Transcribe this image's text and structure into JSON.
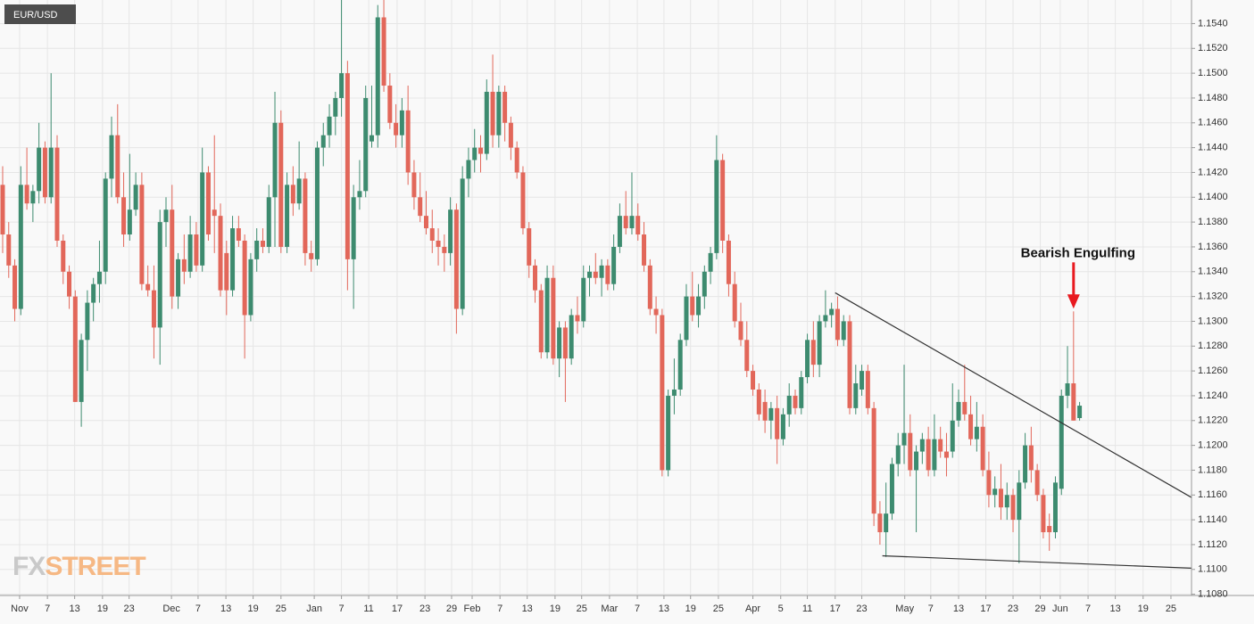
{
  "chart_data": {
    "type": "candlestick",
    "title": "EUR/USD",
    "watermark": [
      "FX",
      "STREET"
    ],
    "up_color": "#3d8b6f",
    "down_color": "#e2675a",
    "grid": true,
    "open": [
      1.141,
      1.137,
      1.1345,
      1.131,
      1.141,
      1.1395,
      1.1405,
      1.144,
      1.14,
      1.144,
      1.1365,
      1.134,
      1.132,
      1.1235,
      1.1285,
      1.1315,
      1.133,
      1.134,
      1.1415,
      1.145,
      1.14,
      1.137,
      1.139,
      1.141,
      1.133,
      1.1325,
      1.1295,
      1.138,
      1.139,
      1.132,
      1.135,
      1.134,
      1.137,
      1.1345,
      1.142,
      1.139,
      1.1385,
      1.1355,
      1.1325,
      1.1375,
      1.1365,
      1.1305,
      1.135,
      1.1365,
      1.136,
      1.14,
      1.146,
      1.136,
      1.141,
      1.1395,
      1.1415,
      1.1355,
      1.135,
      1.144,
      1.145,
      1.1465,
      1.148,
      1.15,
      1.135,
      1.14,
      1.1405,
      1.1445,
      1.145,
      1.1545,
      1.149,
      1.146,
      1.145,
      1.147,
      1.142,
      1.14,
      1.1385,
      1.1375,
      1.1365,
      1.136,
      1.1355,
      1.139,
      1.131,
      1.1415,
      1.143,
      1.144,
      1.1435,
      1.1485,
      1.145,
      1.1485,
      1.146,
      1.144,
      1.142,
      1.1375,
      1.1345,
      1.1325,
      1.1275,
      1.1335,
      1.127,
      1.1295,
      1.127,
      1.1305,
      1.13,
      1.1335,
      1.134,
      1.1335,
      1.1345,
      1.133,
      1.136,
      1.1385,
      1.1375,
      1.1385,
      1.137,
      1.1345,
      1.131,
      1.1305,
      1.118,
      1.124,
      1.1245,
      1.1285,
      1.132,
      1.1305,
      1.132,
      1.134,
      1.1355,
      1.143,
      1.1365,
      1.133,
      1.13,
      1.1285,
      1.126,
      1.1245,
      1.1235,
      1.122,
      1.123,
      1.1205,
      1.1225,
      1.124,
      1.123,
      1.1255,
      1.1285,
      1.1265,
      1.13,
      1.1305,
      1.131,
      1.1285,
      1.13,
      1.123,
      1.1245,
      1.126,
      1.123,
      1.1145,
      1.113,
      1.1145,
      1.1185,
      1.12,
      1.121,
      1.118,
      1.1195,
      1.1205,
      1.118,
      1.1205,
      1.1195,
      1.1195,
      1.122,
      1.1235,
      1.1225,
      1.1205,
      1.1215,
      1.118,
      1.116,
      1.1165,
      1.115,
      1.116,
      1.114,
      1.117,
      1.12,
      1.118,
      1.116,
      1.1135,
      1.113,
      1.1165,
      1.124,
      1.125,
      1.1222
    ],
    "high": [
      1.1425,
      1.138,
      1.135,
      1.1425,
      1.144,
      1.141,
      1.146,
      1.1445,
      1.15,
      1.145,
      1.137,
      1.1345,
      1.1325,
      1.129,
      1.1325,
      1.1335,
      1.1365,
      1.142,
      1.1465,
      1.1475,
      1.142,
      1.1435,
      1.142,
      1.142,
      1.1345,
      1.1345,
      1.139,
      1.14,
      1.141,
      1.1355,
      1.137,
      1.1385,
      1.138,
      1.144,
      1.1425,
      1.145,
      1.1395,
      1.1365,
      1.1385,
      1.1385,
      1.137,
      1.1355,
      1.1375,
      1.1375,
      1.141,
      1.1485,
      1.147,
      1.142,
      1.1425,
      1.1445,
      1.142,
      1.1365,
      1.1445,
      1.146,
      1.1475,
      1.1485,
      1.156,
      1.151,
      1.141,
      1.143,
      1.149,
      1.149,
      1.1555,
      1.156,
      1.15,
      1.1475,
      1.148,
      1.149,
      1.143,
      1.142,
      1.1405,
      1.139,
      1.1375,
      1.137,
      1.14,
      1.1395,
      1.1425,
      1.144,
      1.1455,
      1.145,
      1.1495,
      1.1515,
      1.149,
      1.149,
      1.1465,
      1.1445,
      1.1425,
      1.138,
      1.135,
      1.133,
      1.1345,
      1.1345,
      1.13,
      1.13,
      1.131,
      1.132,
      1.1345,
      1.1345,
      1.1355,
      1.135,
      1.135,
      1.137,
      1.1395,
      1.1405,
      1.142,
      1.1395,
      1.138,
      1.135,
      1.132,
      1.131,
      1.1245,
      1.127,
      1.129,
      1.133,
      1.134,
      1.133,
      1.1345,
      1.136,
      1.145,
      1.1435,
      1.137,
      1.134,
      1.1315,
      1.13,
      1.1265,
      1.125,
      1.1245,
      1.1235,
      1.124,
      1.123,
      1.125,
      1.1245,
      1.126,
      1.129,
      1.13,
      1.1305,
      1.1325,
      1.1315,
      1.132,
      1.1305,
      1.1305,
      1.1265,
      1.1265,
      1.1265,
      1.1235,
      1.1155,
      1.117,
      1.119,
      1.121,
      1.1265,
      1.1225,
      1.12,
      1.121,
      1.1215,
      1.1225,
      1.1215,
      1.121,
      1.125,
      1.1245,
      1.1265,
      1.124,
      1.1235,
      1.1225,
      1.1195,
      1.1175,
      1.1185,
      1.117,
      1.1165,
      1.118,
      1.121,
      1.1215,
      1.1185,
      1.1165,
      1.1145,
      1.1175,
      1.1245,
      1.128,
      1.1308,
      1.1235
    ],
    "low": [
      1.1355,
      1.1335,
      1.13,
      1.1305,
      1.139,
      1.138,
      1.1395,
      1.1395,
      1.1395,
      1.136,
      1.133,
      1.131,
      1.1235,
      1.1215,
      1.126,
      1.13,
      1.1315,
      1.133,
      1.14,
      1.1395,
      1.136,
      1.1365,
      1.1385,
      1.1325,
      1.132,
      1.127,
      1.1265,
      1.136,
      1.131,
      1.131,
      1.133,
      1.1335,
      1.134,
      1.134,
      1.1365,
      1.1355,
      1.132,
      1.1305,
      1.132,
      1.136,
      1.127,
      1.13,
      1.134,
      1.1355,
      1.1355,
      1.136,
      1.1355,
      1.1355,
      1.1385,
      1.139,
      1.1345,
      1.134,
      1.1345,
      1.1425,
      1.144,
      1.145,
      1.1465,
      1.1325,
      1.131,
      1.139,
      1.14,
      1.144,
      1.144,
      1.1485,
      1.1455,
      1.144,
      1.144,
      1.141,
      1.139,
      1.138,
      1.137,
      1.1355,
      1.1345,
      1.134,
      1.1345,
      1.129,
      1.1305,
      1.14,
      1.142,
      1.142,
      1.143,
      1.144,
      1.144,
      1.1445,
      1.143,
      1.1415,
      1.137,
      1.1335,
      1.1315,
      1.127,
      1.127,
      1.1265,
      1.1255,
      1.1235,
      1.1265,
      1.129,
      1.1295,
      1.132,
      1.133,
      1.132,
      1.1325,
      1.1325,
      1.1355,
      1.137,
      1.137,
      1.1365,
      1.134,
      1.1305,
      1.129,
      1.1175,
      1.1175,
      1.1225,
      1.124,
      1.128,
      1.13,
      1.1295,
      1.131,
      1.133,
      1.135,
      1.1355,
      1.132,
      1.1295,
      1.128,
      1.1255,
      1.124,
      1.122,
      1.121,
      1.1205,
      1.1185,
      1.12,
      1.1215,
      1.1225,
      1.1225,
      1.125,
      1.1255,
      1.1255,
      1.1295,
      1.1295,
      1.128,
      1.128,
      1.1225,
      1.1225,
      1.124,
      1.1225,
      1.1135,
      1.112,
      1.111,
      1.114,
      1.1175,
      1.1185,
      1.1175,
      1.113,
      1.1185,
      1.1175,
      1.1175,
      1.119,
      1.1175,
      1.119,
      1.1215,
      1.122,
      1.12,
      1.1195,
      1.1175,
      1.115,
      1.115,
      1.114,
      1.114,
      1.113,
      1.1105,
      1.1165,
      1.117,
      1.1155,
      1.1125,
      1.1115,
      1.1125,
      1.116,
      1.123,
      1.122,
      1.122
    ],
    "close": [
      1.137,
      1.1345,
      1.131,
      1.141,
      1.1395,
      1.1405,
      1.144,
      1.14,
      1.144,
      1.1365,
      1.134,
      1.132,
      1.1235,
      1.1285,
      1.1315,
      1.133,
      1.134,
      1.1415,
      1.145,
      1.14,
      1.137,
      1.139,
      1.141,
      1.133,
      1.1325,
      1.1295,
      1.138,
      1.139,
      1.132,
      1.135,
      1.134,
      1.137,
      1.1345,
      1.142,
      1.137,
      1.1385,
      1.1325,
      1.1325,
      1.1375,
      1.1365,
      1.1305,
      1.135,
      1.1365,
      1.136,
      1.14,
      1.146,
      1.136,
      1.141,
      1.1395,
      1.1415,
      1.1355,
      1.135,
      1.144,
      1.145,
      1.1465,
      1.148,
      1.15,
      1.135,
      1.14,
      1.1405,
      1.148,
      1.145,
      1.1545,
      1.149,
      1.146,
      1.145,
      1.147,
      1.142,
      1.14,
      1.1385,
      1.1375,
      1.1365,
      1.136,
      1.1355,
      1.139,
      1.131,
      1.1415,
      1.143,
      1.144,
      1.1435,
      1.1485,
      1.145,
      1.1485,
      1.146,
      1.144,
      1.142,
      1.1375,
      1.1345,
      1.1325,
      1.1275,
      1.1335,
      1.127,
      1.1295,
      1.127,
      1.1305,
      1.13,
      1.1335,
      1.134,
      1.1335,
      1.1345,
      1.133,
      1.136,
      1.1385,
      1.1375,
      1.1385,
      1.137,
      1.1345,
      1.131,
      1.1305,
      1.118,
      1.124,
      1.1245,
      1.1285,
      1.132,
      1.1305,
      1.132,
      1.134,
      1.1355,
      1.143,
      1.1365,
      1.133,
      1.13,
      1.1285,
      1.126,
      1.1245,
      1.1225,
      1.122,
      1.123,
      1.1205,
      1.1225,
      1.124,
      1.123,
      1.1255,
      1.1285,
      1.1265,
      1.13,
      1.1305,
      1.131,
      1.1285,
      1.13,
      1.123,
      1.125,
      1.126,
      1.123,
      1.1145,
      1.113,
      1.1145,
      1.1185,
      1.12,
      1.121,
      1.118,
      1.1195,
      1.1205,
      1.118,
      1.1205,
      1.1195,
      1.119,
      1.122,
      1.1235,
      1.1225,
      1.1205,
      1.1215,
      1.118,
      1.116,
      1.1165,
      1.115,
      1.116,
      1.114,
      1.117,
      1.12,
      1.118,
      1.116,
      1.113,
      1.113,
      1.117,
      1.124,
      1.125,
      1.122,
      1.1232
    ],
    "xlim": [
      -0.44,
      196.5
    ],
    "xticks": [
      {
        "value": 2.8,
        "label": "Nov"
      },
      {
        "value": 7.4,
        "label": "7"
      },
      {
        "value": 11.9,
        "label": "13"
      },
      {
        "value": 16.5,
        "label": "19"
      },
      {
        "value": 20.9,
        "label": "23"
      },
      {
        "value": 27.9,
        "label": "Dec"
      },
      {
        "value": 32.3,
        "label": "7"
      },
      {
        "value": 36.9,
        "label": "13"
      },
      {
        "value": 41.4,
        "label": "19"
      },
      {
        "value": 46.0,
        "label": "25"
      },
      {
        "value": 51.5,
        "label": "Jan"
      },
      {
        "value": 56.0,
        "label": "7"
      },
      {
        "value": 60.5,
        "label": "11"
      },
      {
        "value": 65.2,
        "label": "17"
      },
      {
        "value": 69.8,
        "label": "23"
      },
      {
        "value": 74.2,
        "label": "29"
      },
      {
        "value": 77.6,
        "label": "Feb"
      },
      {
        "value": 82.2,
        "label": "7"
      },
      {
        "value": 86.7,
        "label": "13"
      },
      {
        "value": 91.3,
        "label": "19"
      },
      {
        "value": 95.7,
        "label": "25"
      },
      {
        "value": 100.3,
        "label": "Mar"
      },
      {
        "value": 104.9,
        "label": "7"
      },
      {
        "value": 109.3,
        "label": "13"
      },
      {
        "value": 113.7,
        "label": "19"
      },
      {
        "value": 118.3,
        "label": "25"
      },
      {
        "value": 124.0,
        "label": "Apr"
      },
      {
        "value": 128.6,
        "label": "5"
      },
      {
        "value": 133.0,
        "label": "11"
      },
      {
        "value": 137.6,
        "label": "17"
      },
      {
        "value": 142.0,
        "label": "23"
      },
      {
        "value": 149.1,
        "label": "May"
      },
      {
        "value": 153.4,
        "label": "7"
      },
      {
        "value": 158.0,
        "label": "13"
      },
      {
        "value": 162.5,
        "label": "17"
      },
      {
        "value": 167.0,
        "label": "23"
      },
      {
        "value": 171.5,
        "label": "29"
      },
      {
        "value": 174.8,
        "label": "Jun"
      },
      {
        "value": 179.4,
        "label": "7"
      },
      {
        "value": 183.9,
        "label": "13"
      },
      {
        "value": 188.5,
        "label": "19"
      },
      {
        "value": 193.1,
        "label": "25"
      }
    ],
    "ylim": [
      1.1079,
      1.1559
    ],
    "yticks": [
      {
        "value": 1.108,
        "label": "1.1080"
      },
      {
        "value": 1.11,
        "label": "1.1100"
      },
      {
        "value": 1.112,
        "label": "1.1120"
      },
      {
        "value": 1.114,
        "label": "1.1140"
      },
      {
        "value": 1.116,
        "label": "1.1160"
      },
      {
        "value": 1.118,
        "label": "1.1180"
      },
      {
        "value": 1.12,
        "label": "1.1200"
      },
      {
        "value": 1.122,
        "label": "1.1220"
      },
      {
        "value": 1.124,
        "label": "1.1240"
      },
      {
        "value": 1.126,
        "label": "1.1260"
      },
      {
        "value": 1.128,
        "label": "1.1280"
      },
      {
        "value": 1.13,
        "label": "1.1300"
      },
      {
        "value": 1.132,
        "label": "1.1320"
      },
      {
        "value": 1.134,
        "label": "1.1340"
      },
      {
        "value": 1.136,
        "label": "1.1360"
      },
      {
        "value": 1.138,
        "label": "1.1380"
      },
      {
        "value": 1.14,
        "label": "1.1400"
      },
      {
        "value": 1.142,
        "label": "1.1420"
      },
      {
        "value": 1.144,
        "label": "1.1440"
      },
      {
        "value": 1.146,
        "label": "1.1460"
      },
      {
        "value": 1.148,
        "label": "1.1480"
      },
      {
        "value": 1.15,
        "label": "1.1500"
      },
      {
        "value": 1.152,
        "label": "1.1520"
      },
      {
        "value": 1.154,
        "label": "1.1540"
      }
    ],
    "trendlines": [
      {
        "x": [
          137.6,
          196.5
        ],
        "y": [
          1.1323,
          1.1158
        ],
        "color": "#333333"
      },
      {
        "x": [
          145.4,
          196.5
        ],
        "y": [
          1.1111,
          1.1101
        ],
        "color": "#333333"
      }
    ],
    "annotations": [
      {
        "text": "Bearish Engulfing",
        "x": 177,
        "y": 1.1308,
        "color": "#e8191f"
      }
    ]
  }
}
